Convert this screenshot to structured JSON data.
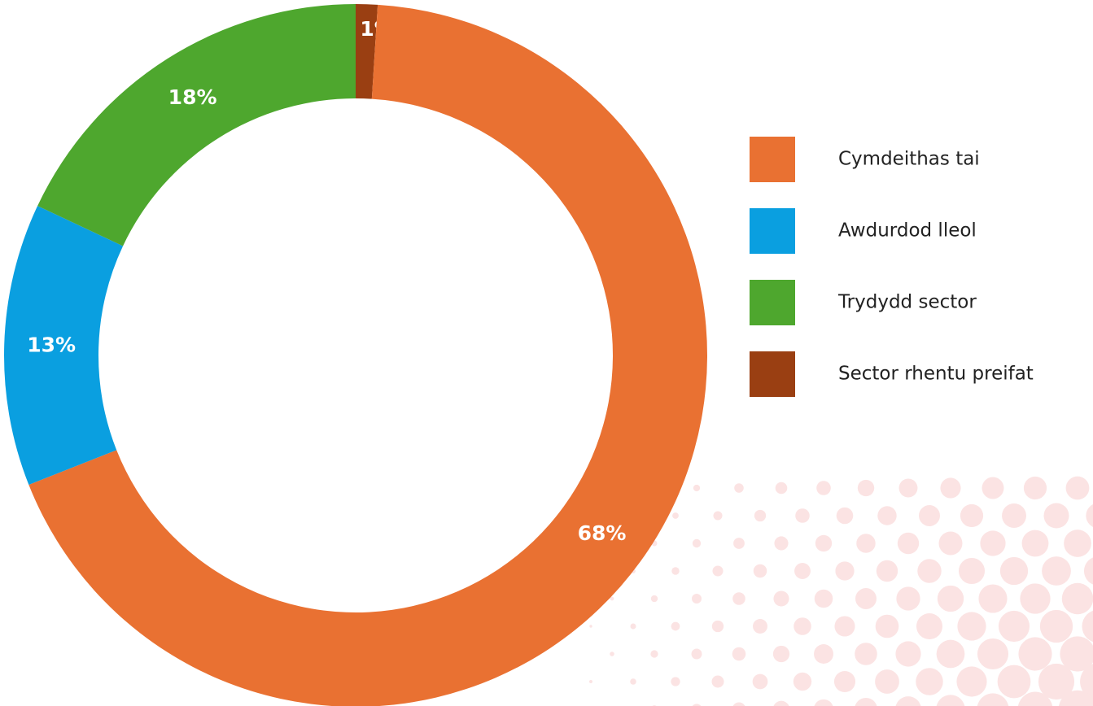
{
  "chart_data": {
    "type": "donut",
    "categories": [
      "Cymdeithas tai",
      "Awdurdod lleol",
      "Trydydd sector",
      "Sector rhentu preifat"
    ],
    "values": [
      68,
      13,
      18,
      1
    ],
    "value_labels": [
      "68%",
      "13%",
      "18%",
      "1%"
    ],
    "colors": [
      "#E97132",
      "#0A9FE0",
      "#4EA72E",
      "#9A3F12"
    ],
    "legend": "right"
  }
}
